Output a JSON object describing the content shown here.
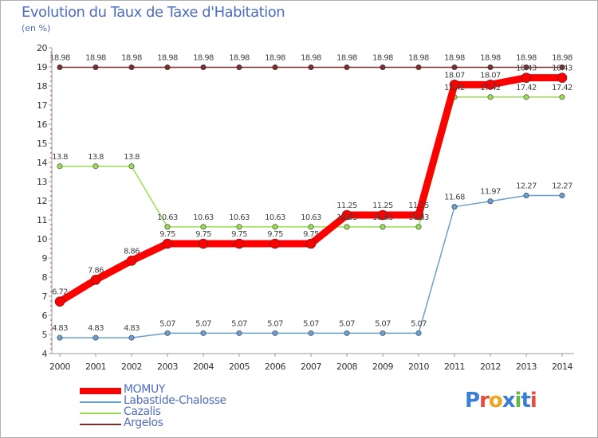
{
  "header": {
    "title": "Evolution du Taux de Taxe d'Habitation",
    "subtitle": "(en %)"
  },
  "logo": {
    "text": "Proxiti"
  },
  "chart_data": {
    "type": "line",
    "x": [
      "2000",
      "2001",
      "2002",
      "2003",
      "2004",
      "2005",
      "2006",
      "2007",
      "2008",
      "2009",
      "2010",
      "2011",
      "2012",
      "2013",
      "2014"
    ],
    "ylim": [
      4,
      20
    ],
    "yticks": [
      4,
      5,
      6,
      7,
      8,
      9,
      10,
      11,
      12,
      13,
      14,
      15,
      16,
      17,
      18,
      19,
      20
    ],
    "grid": false,
    "legend_position": "bottom-left",
    "series": [
      {
        "name": "MOMUY",
        "color": "#ff0000",
        "values": [
          6.72,
          7.86,
          8.86,
          9.75,
          9.75,
          9.75,
          9.75,
          9.75,
          11.25,
          11.25,
          11.25,
          18.07,
          18.07,
          18.43,
          18.43
        ],
        "labels": [
          "6.72",
          "7.86",
          "8.86",
          "9.75",
          "9.75",
          "9.75",
          "9.75",
          "9.75",
          "11.25",
          "11.25",
          "11.25",
          "18.07",
          "18.07",
          "18.43",
          "18.43"
        ]
      },
      {
        "name": "Labastide-Chalosse",
        "color": "#6a9fd0",
        "values": [
          4.83,
          4.83,
          4.83,
          5.07,
          5.07,
          5.07,
          5.07,
          5.07,
          5.07,
          5.07,
          5.07,
          11.68,
          11.97,
          12.27,
          12.27
        ],
        "labels": [
          "4.83",
          "4.83",
          "4.83",
          "5.07",
          "5.07",
          "5.07",
          "5.07",
          "5.07",
          "5.07",
          "5.07",
          "5.07",
          "11.68",
          "11.97",
          "12.27",
          "12.27"
        ]
      },
      {
        "name": "Cazalis",
        "color": "#99dd55",
        "values": [
          13.8,
          13.8,
          13.8,
          10.63,
          10.63,
          10.63,
          10.63,
          10.63,
          10.63,
          10.63,
          10.63,
          17.42,
          17.42,
          17.42,
          17.42
        ],
        "labels": [
          "13.8",
          "13.8",
          "13.8",
          "10.63",
          "10.63",
          "10.63",
          "10.63",
          "10.63",
          "10.63",
          "10.63",
          "10.63",
          "17.42",
          "17.42",
          "17.42",
          "17.42"
        ]
      },
      {
        "name": "Argelos",
        "color": "#7a2e2e",
        "values": [
          18.98,
          18.98,
          18.98,
          18.98,
          18.98,
          18.98,
          18.98,
          18.98,
          18.98,
          18.98,
          18.98,
          18.98,
          18.98,
          18.98,
          18.98
        ],
        "labels": [
          "18.98",
          "18.98",
          "18.98",
          "18.98",
          "18.98",
          "18.98",
          "18.98",
          "18.98",
          "18.98",
          "18.98",
          "18.98",
          "18.98",
          "18.98",
          "18.98",
          "18.98"
        ]
      }
    ]
  }
}
